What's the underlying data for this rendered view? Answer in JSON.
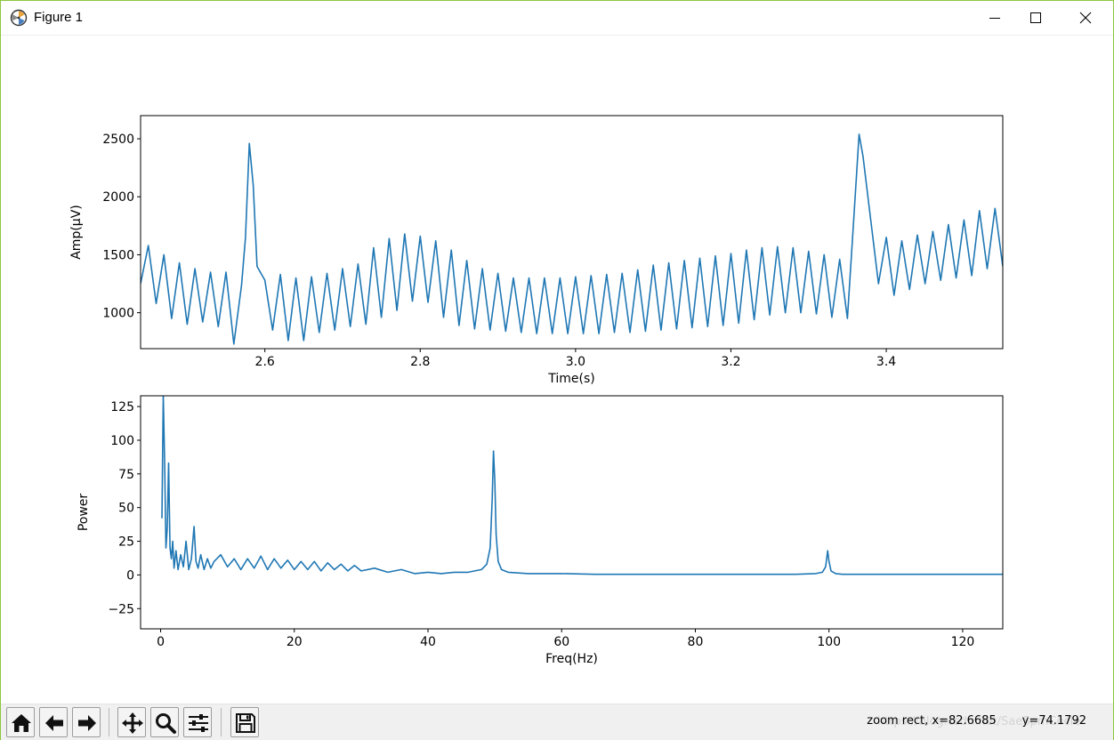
{
  "window": {
    "title": "Figure 1"
  },
  "toolbar": {
    "buttons": [
      {
        "name": "home",
        "icon": "home-icon"
      },
      {
        "name": "back",
        "icon": "arrow-left-icon"
      },
      {
        "name": "forward",
        "icon": "arrow-right-icon"
      },
      {
        "name": "pan",
        "icon": "move-icon"
      },
      {
        "name": "zoom",
        "icon": "zoom-icon"
      },
      {
        "name": "configure",
        "icon": "sliders-icon"
      },
      {
        "name": "save",
        "icon": "save-icon"
      }
    ],
    "status": "zoom rect, x=82.6685       y=74.1792",
    "watermark": "https://blog.csdn.net/SaeSpmCocle"
  },
  "colors": {
    "line": "#1f77b4",
    "window_border": "#8dc63f",
    "toolbar_bg": "#f0f0f0"
  },
  "chart_data": [
    {
      "type": "line",
      "xlabel": "Time(s)",
      "ylabel": "Amp(μV)",
      "xlim": [
        2.44,
        3.55
      ],
      "ylim": [
        690,
        2700
      ],
      "xticks": [
        2.6,
        2.8,
        3.0,
        3.2,
        3.4
      ],
      "xtick_labels": [
        "2.6",
        "2.8",
        "3.0",
        "3.2",
        "3.4"
      ],
      "yticks": [
        1000,
        1500,
        2000,
        2500
      ],
      "ytick_labels": [
        "1000",
        "1500",
        "2000",
        "2500"
      ],
      "grid": false,
      "series": [
        {
          "x": [
            2.44,
            2.45,
            2.46,
            2.47,
            2.48,
            2.49,
            2.5,
            2.51,
            2.52,
            2.53,
            2.54,
            2.55,
            2.56,
            2.57,
            2.575,
            2.58,
            2.585,
            2.59,
            2.6,
            2.61,
            2.62,
            2.63,
            2.64,
            2.65,
            2.66,
            2.67,
            2.68,
            2.69,
            2.7,
            2.71,
            2.72,
            2.73,
            2.74,
            2.75,
            2.76,
            2.77,
            2.78,
            2.79,
            2.8,
            2.81,
            2.82,
            2.83,
            2.84,
            2.85,
            2.86,
            2.87,
            2.88,
            2.89,
            2.9,
            2.91,
            2.92,
            2.93,
            2.94,
            2.95,
            2.96,
            2.97,
            2.98,
            2.99,
            3.0,
            3.01,
            3.02,
            3.03,
            3.04,
            3.05,
            3.06,
            3.07,
            3.08,
            3.09,
            3.1,
            3.11,
            3.12,
            3.13,
            3.14,
            3.15,
            3.16,
            3.17,
            3.18,
            3.19,
            3.2,
            3.21,
            3.22,
            3.23,
            3.24,
            3.25,
            3.26,
            3.27,
            3.28,
            3.29,
            3.3,
            3.31,
            3.32,
            3.33,
            3.34,
            3.35,
            3.36,
            3.365,
            3.37,
            3.38,
            3.39,
            3.4,
            3.41,
            3.42,
            3.43,
            3.44,
            3.45,
            3.46,
            3.47,
            3.48,
            3.49,
            3.5,
            3.51,
            3.52,
            3.53,
            3.54,
            3.55
          ],
          "y": [
            1250,
            1580,
            1080,
            1500,
            950,
            1430,
            900,
            1380,
            920,
            1350,
            880,
            1350,
            730,
            1240,
            1650,
            2460,
            2100,
            1400,
            1280,
            850,
            1330,
            760,
            1300,
            760,
            1310,
            830,
            1340,
            850,
            1380,
            880,
            1420,
            900,
            1560,
            960,
            1640,
            1020,
            1680,
            1100,
            1660,
            1090,
            1620,
            960,
            1540,
            890,
            1450,
            860,
            1380,
            850,
            1340,
            840,
            1300,
            830,
            1300,
            820,
            1300,
            820,
            1300,
            820,
            1310,
            820,
            1320,
            820,
            1330,
            830,
            1340,
            830,
            1370,
            840,
            1410,
            850,
            1430,
            860,
            1450,
            870,
            1470,
            880,
            1490,
            890,
            1510,
            910,
            1540,
            940,
            1560,
            980,
            1570,
            1000,
            1560,
            1000,
            1530,
            990,
            1500,
            960,
            1460,
            950,
            2000,
            2540,
            2350,
            1800,
            1250,
            1650,
            1150,
            1620,
            1200,
            1670,
            1250,
            1700,
            1280,
            1760,
            1300,
            1800,
            1320,
            1880,
            1380,
            1900,
            1400
          ]
        }
      ]
    },
    {
      "type": "line",
      "xlabel": "Freq(Hz)",
      "ylabel": "Power",
      "xlim": [
        -3,
        126
      ],
      "ylim": [
        -40,
        133
      ],
      "xticks": [
        0,
        20,
        40,
        60,
        80,
        100,
        120
      ],
      "xtick_labels": [
        "0",
        "20",
        "40",
        "60",
        "80",
        "100",
        "120"
      ],
      "yticks": [
        -25,
        0,
        25,
        50,
        75,
        100,
        125
      ],
      "ytick_labels": [
        "−25",
        "0",
        "25",
        "50",
        "75",
        "100",
        "125"
      ],
      "grid": false,
      "series": [
        {
          "x": [
            0.2,
            0.4,
            0.6,
            0.8,
            1.0,
            1.2,
            1.4,
            1.6,
            1.8,
            2.0,
            2.3,
            2.6,
            3.0,
            3.4,
            3.8,
            4.2,
            4.6,
            5.0,
            5.3,
            5.6,
            6.0,
            6.5,
            7.0,
            7.5,
            8.0,
            9.0,
            10,
            11,
            12,
            13,
            14,
            15,
            16,
            17,
            18,
            19,
            20,
            21,
            22,
            23,
            24,
            25,
            26,
            27,
            28,
            29,
            30,
            32,
            34,
            36,
            38,
            40,
            42,
            44,
            46,
            47,
            48,
            48.8,
            49.3,
            49.6,
            49.8,
            50.0,
            50.2,
            50.5,
            51,
            52,
            55,
            60,
            65,
            70,
            75,
            80,
            85,
            90,
            95,
            98,
            99,
            99.5,
            99.8,
            100.0,
            100.3,
            101,
            102,
            105,
            110,
            115,
            120,
            126
          ],
          "y": [
            42,
            133,
            85,
            20,
            35,
            83,
            20,
            12,
            25,
            5,
            18,
            4,
            15,
            6,
            25,
            4,
            12,
            36,
            10,
            5,
            15,
            4,
            12,
            5,
            10,
            15,
            6,
            12,
            4,
            12,
            5,
            14,
            4,
            12,
            5,
            11,
            4,
            10,
            4,
            10,
            3,
            9,
            4,
            8,
            3,
            7,
            3,
            5,
            2,
            4,
            1,
            2,
            1,
            2,
            2,
            3,
            4,
            8,
            20,
            55,
            92,
            70,
            30,
            10,
            4,
            2,
            1,
            1,
            0.5,
            0.5,
            0.5,
            0.5,
            0.5,
            0.5,
            0.5,
            1,
            2,
            6,
            18,
            10,
            3,
            1,
            0.5,
            0.5,
            0.5,
            0.5,
            0.5,
            0.5
          ]
        }
      ]
    }
  ]
}
